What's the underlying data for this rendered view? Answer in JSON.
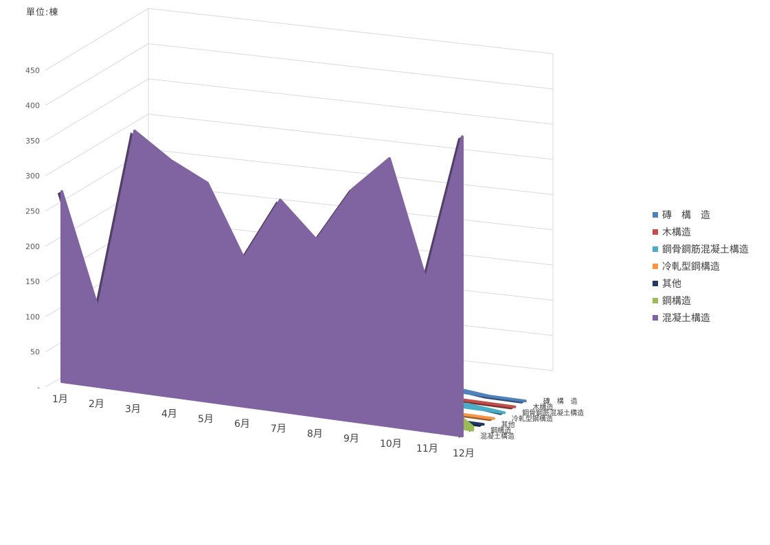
{
  "unit_label": "單位:棟",
  "chart_data": {
    "type": "area",
    "variant": "3d-area",
    "categories": [
      "1月",
      "2月",
      "3月",
      "4月",
      "5月",
      "6月",
      "7月",
      "8月",
      "9月",
      "10月",
      "11月",
      "12月"
    ],
    "y_ticks": [
      "-",
      "50",
      "100",
      "150",
      "200",
      "250",
      "300",
      "350",
      "400",
      "450"
    ],
    "ylim": [
      0,
      450
    ],
    "grid": true,
    "legend_position": "right",
    "series": [
      {
        "name": "磚　構　造",
        "color": "#4f81bd",
        "values": [
          0,
          0,
          12,
          6,
          0,
          0,
          5,
          0,
          0,
          5,
          0,
          0
        ]
      },
      {
        "name": "木構造",
        "color": "#c0504d",
        "values": [
          0,
          0,
          0,
          0,
          0,
          0,
          0,
          0,
          0,
          0,
          0,
          0
        ]
      },
      {
        "name": "鋼骨鋼筋混凝土構造",
        "color": "#4bacc6",
        "values": [
          0,
          0,
          0,
          0,
          0,
          0,
          3,
          0,
          5,
          0,
          5,
          0
        ]
      },
      {
        "name": "冷軋型鋼構造",
        "color": "#f79646",
        "values": [
          0,
          0,
          0,
          0,
          0,
          0,
          0,
          0,
          0,
          0,
          0,
          0
        ]
      },
      {
        "name": "其他",
        "color": "#1f3864",
        "values": [
          0,
          0,
          0,
          0,
          0,
          0,
          0,
          0,
          0,
          0,
          0,
          0
        ]
      },
      {
        "name": "鋼構造",
        "color": "#9bbb59",
        "values": [
          30,
          20,
          80,
          85,
          35,
          30,
          40,
          30,
          10,
          30,
          40,
          5
        ]
      },
      {
        "name": "混凝土構造",
        "color": "#8064a2",
        "values": [
          270,
          110,
          370,
          335,
          310,
          210,
          300,
          250,
          330,
          380,
          215,
          425
        ]
      }
    ],
    "depth_labels": [
      "混凝土構造",
      "鋼構造",
      "其他",
      "冷軋型鋼構造",
      "鋼骨鋼筋混凝土構造",
      "木構造",
      "磚　構　造"
    ]
  }
}
